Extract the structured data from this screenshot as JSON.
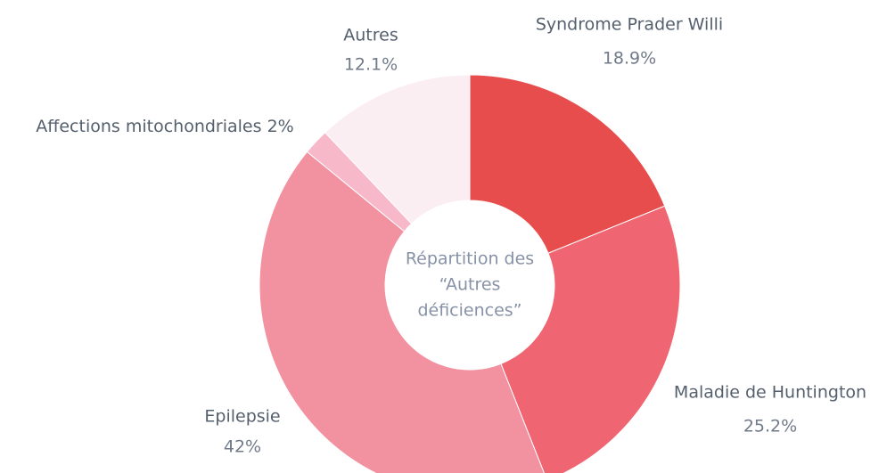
{
  "chart_data": {
    "type": "donut",
    "categories": [
      "Syndrome Prader Willi",
      "Maladie de Huntington",
      "Epilepsie",
      "Affections mitochondriales",
      "Autres"
    ],
    "values": [
      18.9,
      25.2,
      42,
      2,
      12.1
    ],
    "value_labels": [
      "18.9%",
      "25.2%",
      "42%",
      "2%",
      "12.1%"
    ],
    "colors": [
      "#e84d4d",
      "#ef6571",
      "#f2919f",
      "#f7b8ca",
      "#fbeef3"
    ],
    "center_text": [
      "Répartition des",
      "“Autres",
      "déficiences”"
    ]
  }
}
